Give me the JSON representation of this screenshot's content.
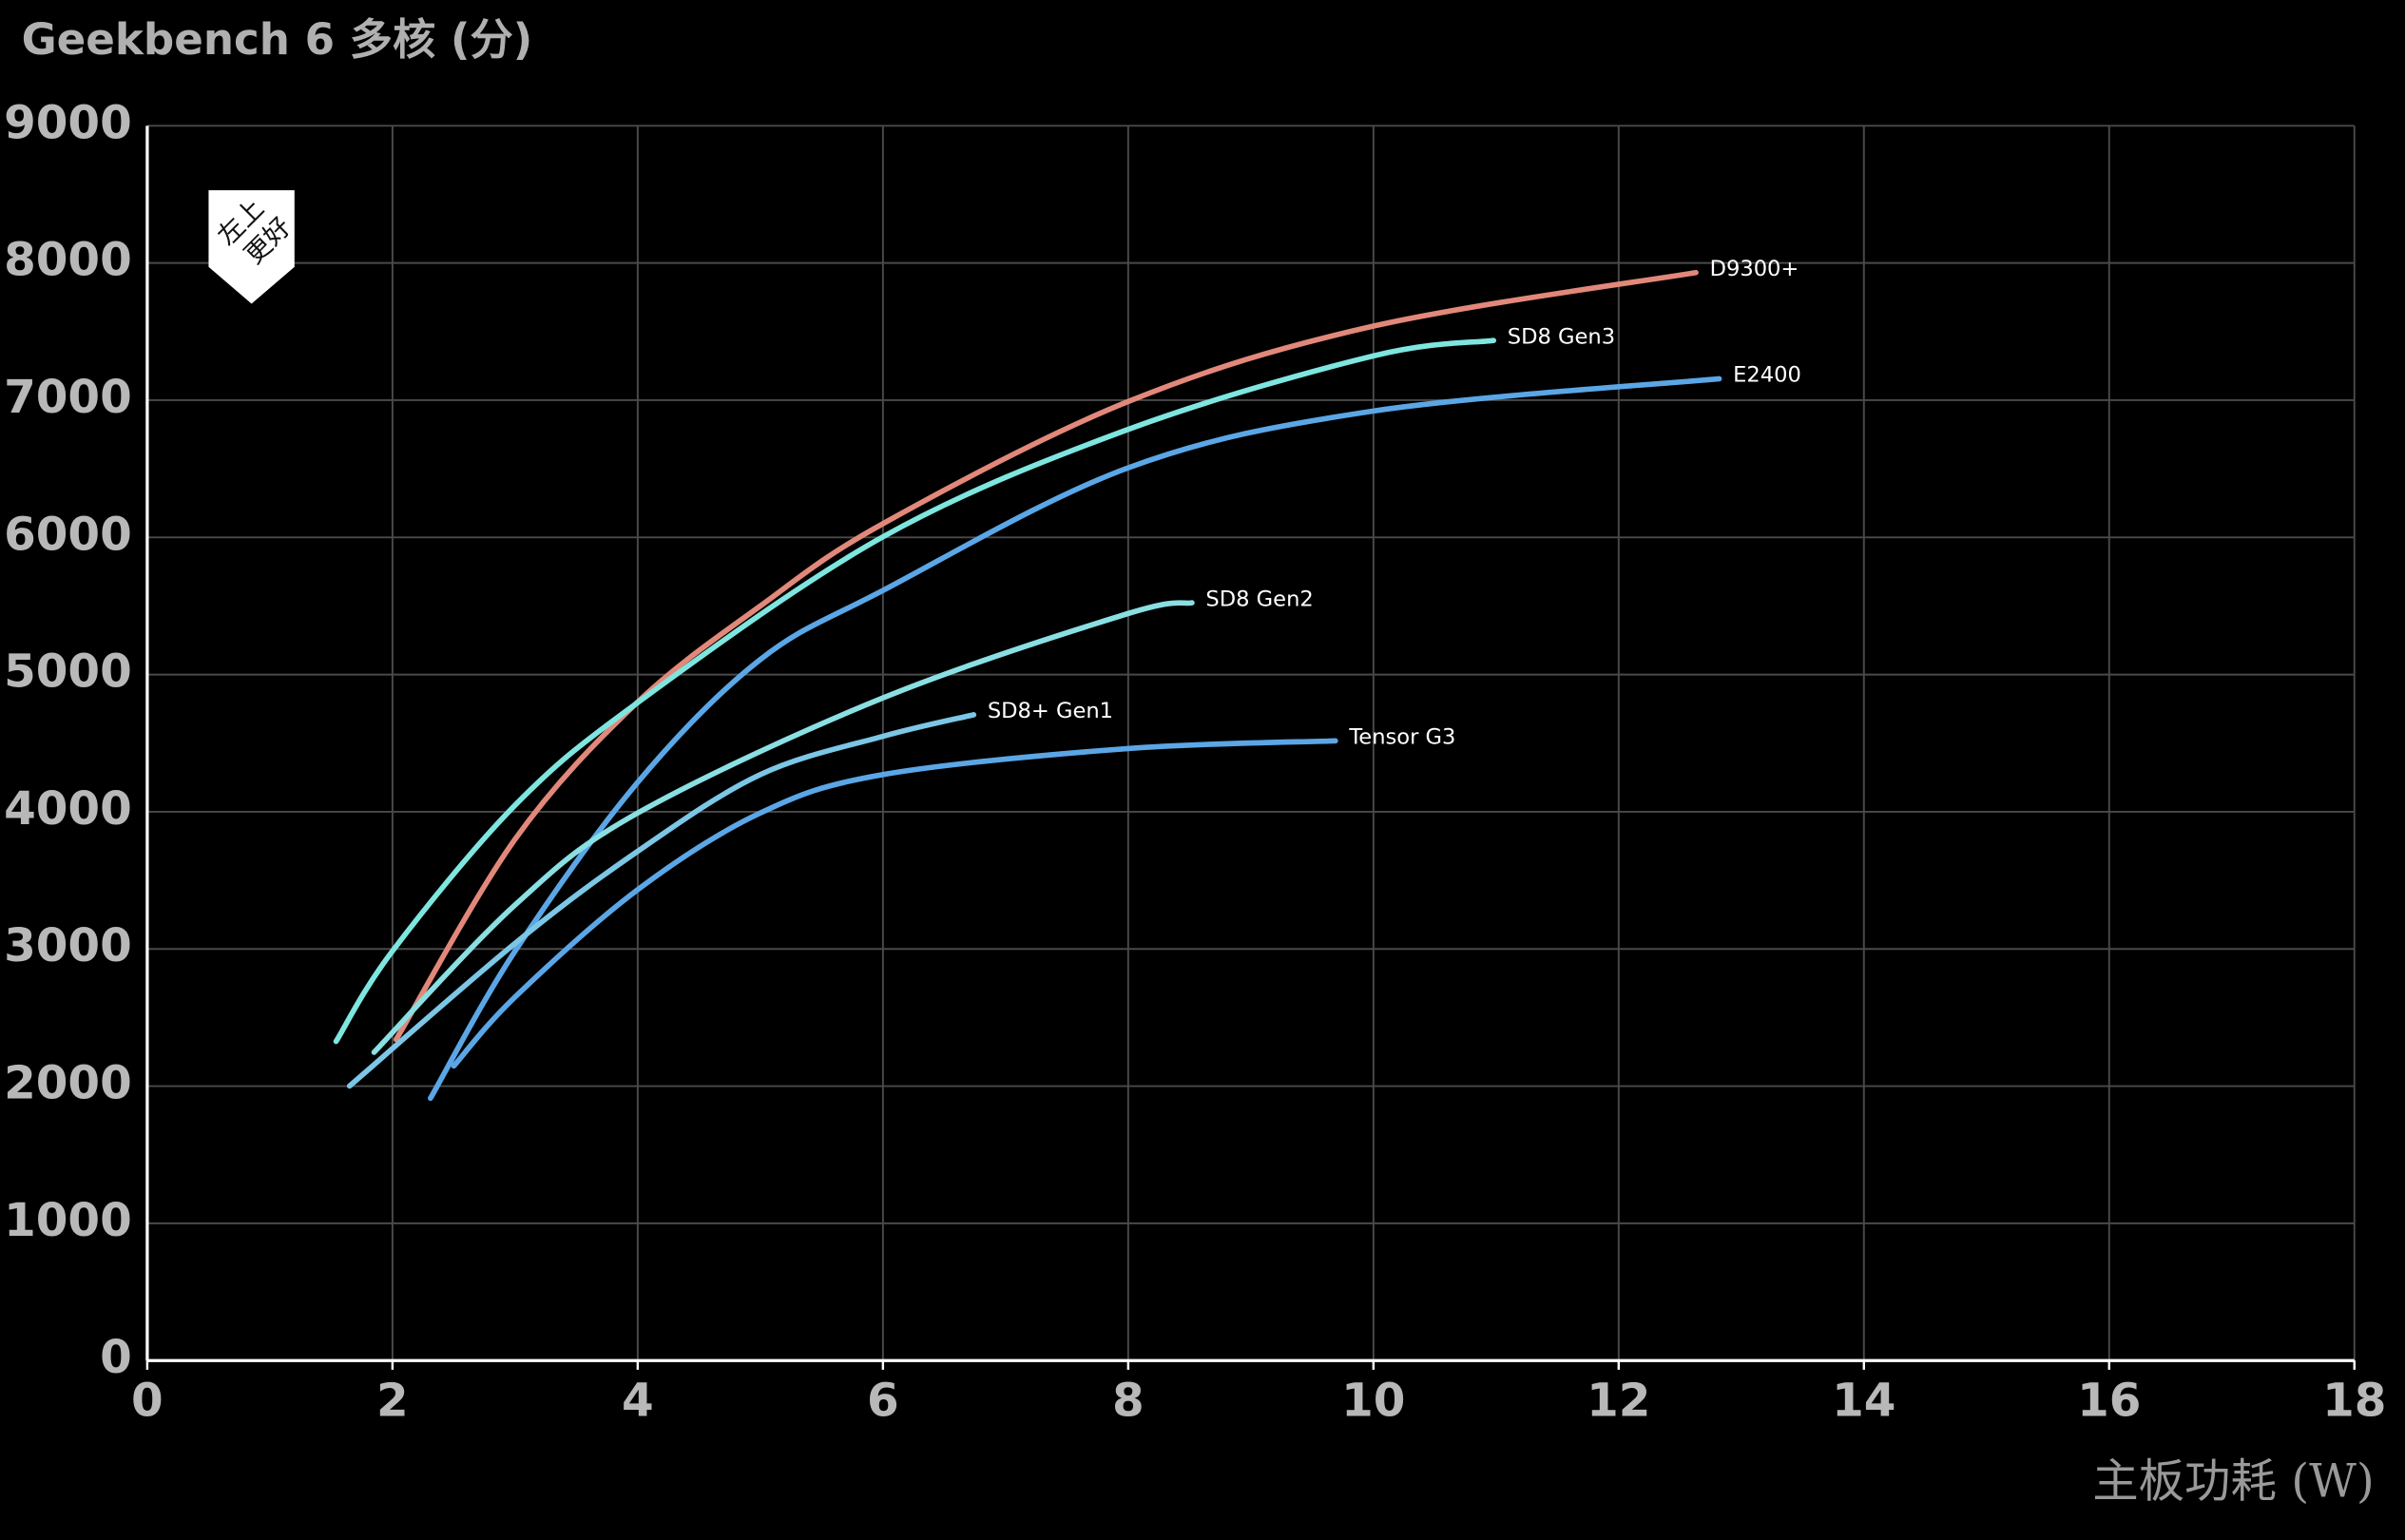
{
  "chart_data": {
    "type": "line",
    "title": "Geekbench 6 多核 (分)",
    "xlabel": "主板功耗 (W)",
    "annotation": [
      "左上",
      "更好"
    ],
    "xlim": [
      0,
      18
    ],
    "xticks": [
      0,
      2,
      4,
      6,
      8,
      10,
      12,
      14,
      16,
      18
    ],
    "ylim": [
      0,
      9000
    ],
    "yticks": [
      0,
      1000,
      2000,
      3000,
      4000,
      5000,
      6000,
      7000,
      8000,
      9000
    ],
    "grid": true,
    "series": [
      {
        "name": "D9300+",
        "color": "#e2887a",
        "x": [
          2.03,
          3,
          4,
          5,
          6,
          8,
          10,
          12.63
        ],
        "values": [
          2340,
          3800,
          4800,
          5500,
          6100,
          6990,
          7540,
          7930
        ]
      },
      {
        "name": "SD8 Gen3",
        "color": "#7ee6df",
        "x": [
          1.54,
          2,
          3,
          4,
          6,
          8,
          10,
          10.98
        ],
        "values": [
          2326,
          2985,
          4048,
          4796,
          6004,
          6787,
          7323,
          7435
        ]
      },
      {
        "name": "E2400",
        "color": "#5ba6e6",
        "x": [
          2.31,
          3,
          4,
          5,
          6,
          8,
          10,
          12.82
        ],
        "values": [
          1912,
          2985,
          4215,
          5110,
          5613,
          6507,
          6921,
          7156
        ]
      },
      {
        "name": "SD8 Gen2",
        "color": "#8adfe2",
        "x": [
          1.85,
          3,
          4,
          6,
          8,
          8.52
        ],
        "values": [
          2247,
          3321,
          3991,
          4830,
          5445,
          5523
        ]
      },
      {
        "name": "SD8+ Gen1",
        "color": "#7cc6e6",
        "x": [
          1.65,
          3,
          4,
          5,
          6,
          6.74
        ],
        "values": [
          2001,
          3041,
          3712,
          4271,
          4550,
          4707
        ]
      },
      {
        "name": "Tensor G3",
        "color": "#5ba6e6",
        "x": [
          2.5,
          3,
          4,
          5,
          6,
          8,
          9.69
        ],
        "values": [
          2147,
          2650,
          3432,
          3991,
          4271,
          4461,
          4517
        ]
      }
    ]
  }
}
